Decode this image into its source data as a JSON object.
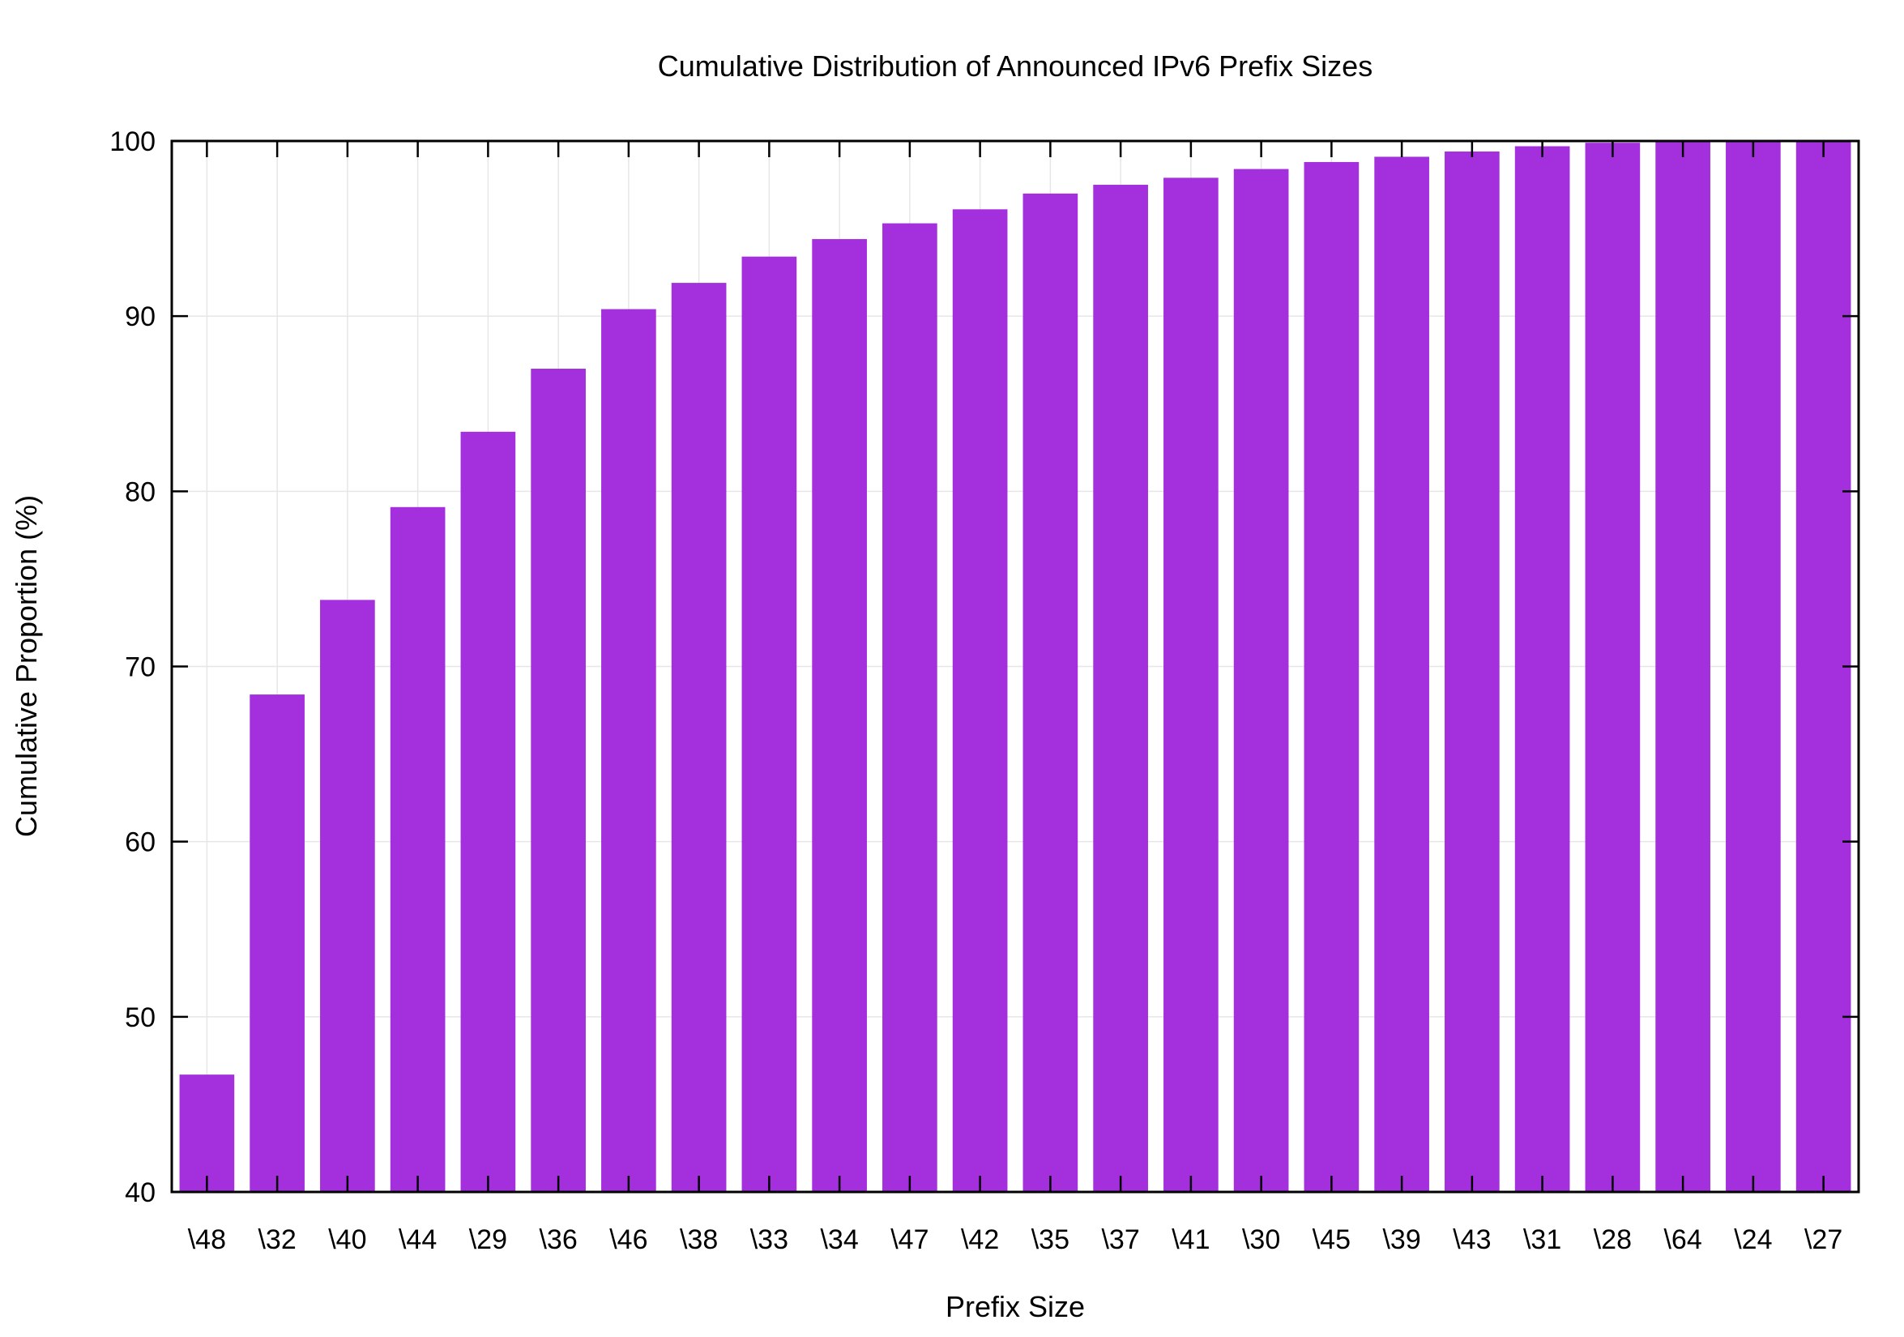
{
  "chart_data": {
    "type": "bar",
    "title": "Cumulative Distribution of Announced IPv6 Prefix Sizes",
    "xlabel": "Prefix Size",
    "ylabel": "Cumulative Proportion (%)",
    "ylim": [
      40,
      100
    ],
    "yticks": [
      40,
      50,
      60,
      70,
      80,
      90,
      100
    ],
    "grid": true,
    "legend": "none",
    "bar_color": "#a32fdd",
    "categories": [
      "\\48",
      "\\32",
      "\\40",
      "\\44",
      "\\29",
      "\\36",
      "\\46",
      "\\38",
      "\\33",
      "\\34",
      "\\47",
      "\\42",
      "\\35",
      "\\37",
      "\\41",
      "\\30",
      "\\45",
      "\\39",
      "\\43",
      "\\31",
      "\\28",
      "\\64",
      "\\24",
      "\\27"
    ],
    "values": [
      46.7,
      68.4,
      73.8,
      79.1,
      83.4,
      87.0,
      90.4,
      91.9,
      93.4,
      94.4,
      95.3,
      96.1,
      97.0,
      97.5,
      97.9,
      98.4,
      98.8,
      99.1,
      99.4,
      99.7,
      99.9,
      100.0,
      100.0,
      100.0
    ]
  }
}
